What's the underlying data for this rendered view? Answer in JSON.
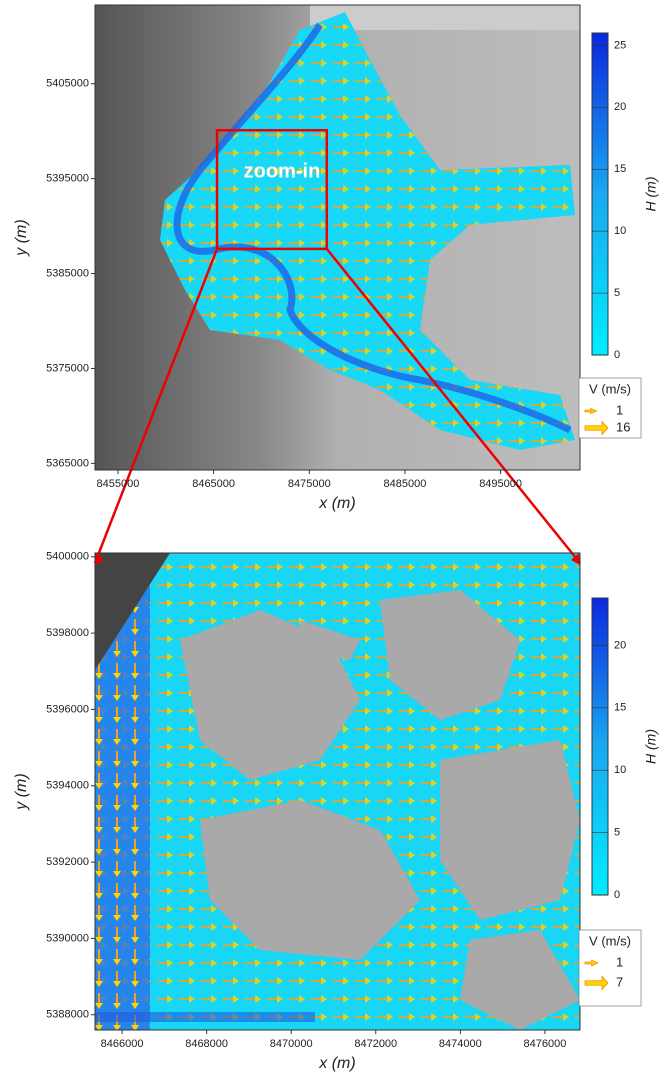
{
  "chart_data": [
    {
      "type": "map",
      "xlabel": "x (m)",
      "ylabel": "y (m)",
      "annotation": "zoom-in",
      "xlim": [
        8452600,
        8503300
      ],
      "xticks": [
        8455000,
        8465000,
        8475000,
        8485000,
        8495000
      ],
      "ylim": [
        5364300,
        5413300
      ],
      "yticks": [
        5365000,
        5375000,
        5385000,
        5395000,
        5405000
      ],
      "colorbar": {
        "label": "H (m)",
        "lim": [
          0,
          26
        ],
        "ticks": [
          0,
          5,
          10,
          15,
          20,
          25
        ]
      },
      "legend": {
        "title": "V (m/s)",
        "values": [
          1,
          16
        ]
      }
    },
    {
      "type": "map",
      "xlabel": "x (m)",
      "ylabel": "y (m)",
      "xlim": [
        8465360,
        8476830
      ],
      "xticks": [
        8466000,
        8468000,
        8470000,
        8472000,
        8474000,
        8476000
      ],
      "ylim": [
        5387600,
        5400100
      ],
      "yticks": [
        5388000,
        5390000,
        5392000,
        5394000,
        5396000,
        5398000,
        5400000
      ],
      "colorbar": {
        "label": "H (m)",
        "lim": [
          0,
          23.8
        ],
        "ticks": [
          0,
          5,
          10,
          15,
          20
        ]
      },
      "legend": {
        "title": "V (m/s)",
        "values": [
          1,
          7
        ]
      }
    }
  ]
}
